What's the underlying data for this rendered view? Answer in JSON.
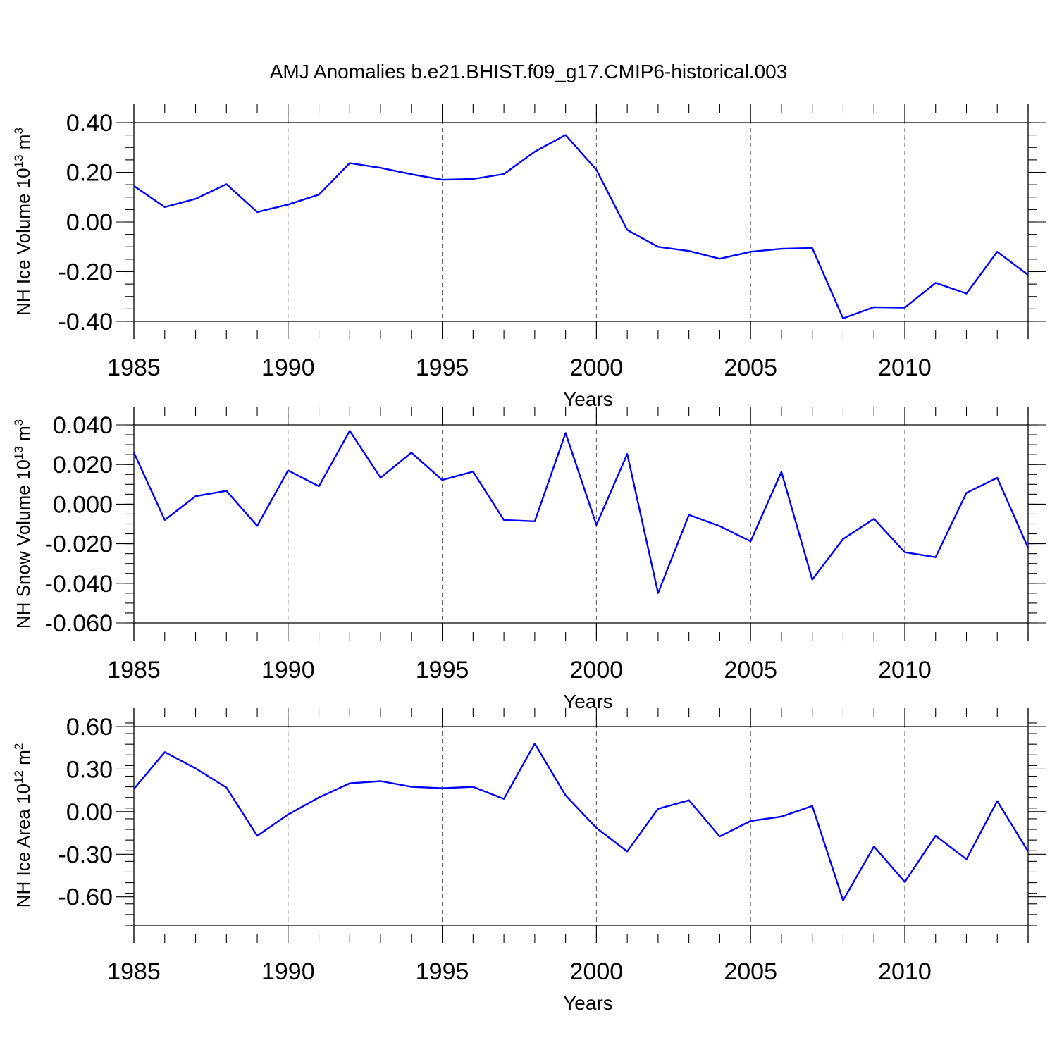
{
  "title": "AMJ Anomalies b.e21.BHIST.f09_g17.CMIP6-historical.003",
  "chart_data": [
    {
      "type": "line",
      "xlabel": "Years",
      "ylabel": "NH Ice Volume 10",
      "ylabel_exponent": "13",
      "ylabel_unit": "m",
      "ylabel_unit_power": "3",
      "xlim": [
        1985,
        2014
      ],
      "ylim": [
        -0.4,
        0.4
      ],
      "xticks": [
        "1985",
        "1990",
        "1995",
        "2000",
        "2005",
        "2010"
      ],
      "yticks": [
        "0.40",
        "0.20",
        "0.00",
        "-0.20",
        "-0.40"
      ],
      "ytick_values": [
        0.4,
        0.2,
        0.0,
        -0.2,
        -0.4
      ],
      "grid": "dashed vertical lines at 1990, 1995, 2000, 2005, 2010",
      "color": "#0000ff",
      "x": [
        1985,
        1986,
        1987,
        1988,
        1989,
        1990,
        1991,
        1992,
        1993,
        1994,
        1995,
        1996,
        1997,
        1998,
        1999,
        2000,
        2001,
        2002,
        2003,
        2004,
        2005,
        2006,
        2007,
        2008,
        2009,
        2010,
        2011,
        2012,
        2013,
        2014
      ],
      "values": [
        0.145,
        0.06,
        0.093,
        0.152,
        0.04,
        0.07,
        0.11,
        0.237,
        0.218,
        0.192,
        0.17,
        0.173,
        0.193,
        0.283,
        0.35,
        0.21,
        -0.032,
        -0.1,
        -0.117,
        -0.148,
        -0.12,
        -0.108,
        -0.105,
        -0.388,
        -0.343,
        -0.345,
        -0.245,
        -0.288,
        -0.12,
        -0.213
      ]
    },
    {
      "type": "line",
      "xlabel": "Years",
      "ylabel": "NH Snow Volume 10",
      "ylabel_exponent": "13",
      "ylabel_unit": "m",
      "ylabel_unit_power": "3",
      "xlim": [
        1985,
        2014
      ],
      "ylim": [
        -0.06,
        0.04
      ],
      "xticks": [
        "1985",
        "1990",
        "1995",
        "2000",
        "2005",
        "2010"
      ],
      "yticks": [
        "0.040",
        "0.020",
        "0.000",
        "-0.020",
        "-0.040",
        "-0.060"
      ],
      "ytick_values": [
        0.04,
        0.02,
        0.0,
        -0.02,
        -0.04,
        -0.06
      ],
      "grid": "dashed vertical lines at 1990, 1995, 2000, 2005, 2010",
      "color": "#0000ff",
      "x": [
        1985,
        1986,
        1987,
        1988,
        1989,
        1990,
        1991,
        1992,
        1993,
        1994,
        1995,
        1996,
        1997,
        1998,
        1999,
        2000,
        2001,
        2002,
        2003,
        2004,
        2005,
        2006,
        2007,
        2008,
        2009,
        2010,
        2011,
        2012,
        2013,
        2014
      ],
      "values": [
        0.026,
        -0.008,
        0.004,
        0.0067,
        -0.011,
        0.017,
        0.009,
        0.037,
        0.0133,
        0.026,
        0.0122,
        0.0164,
        -0.008,
        -0.0087,
        0.0359,
        -0.0105,
        0.0253,
        -0.0449,
        -0.0054,
        -0.0111,
        -0.0188,
        0.0163,
        -0.0381,
        -0.0176,
        -0.0074,
        -0.0243,
        -0.0268,
        0.0057,
        0.0133,
        -0.0221
      ]
    },
    {
      "type": "line",
      "xlabel": "Years",
      "ylabel": "NH Ice Area 10",
      "ylabel_exponent": "12",
      "ylabel_unit": "m",
      "ylabel_unit_power": "2",
      "xlim": [
        1985,
        2014
      ],
      "ylim": [
        -0.8,
        0.6
      ],
      "xticks": [
        "1985",
        "1990",
        "1995",
        "2000",
        "2005",
        "2010"
      ],
      "yticks": [
        "0.60",
        "0.30",
        "0.00",
        "-0.30",
        "-0.60"
      ],
      "ytick_values": [
        0.6,
        0.3,
        0.0,
        -0.3,
        -0.6
      ],
      "grid": "dashed vertical lines at 1990, 1995, 2000, 2005, 2010",
      "color": "#0000ff",
      "x": [
        1985,
        1986,
        1987,
        1988,
        1989,
        1990,
        1991,
        1992,
        1993,
        1994,
        1995,
        1996,
        1997,
        1998,
        1999,
        2000,
        2001,
        2002,
        2003,
        2004,
        2005,
        2006,
        2007,
        2008,
        2009,
        2010,
        2011,
        2012,
        2013,
        2014
      ],
      "values": [
        0.16,
        0.42,
        0.305,
        0.17,
        -0.17,
        -0.02,
        0.1,
        0.2,
        0.215,
        0.175,
        0.165,
        0.175,
        0.09,
        0.48,
        0.115,
        -0.115,
        -0.28,
        0.02,
        0.08,
        -0.175,
        -0.065,
        -0.035,
        0.04,
        -0.625,
        -0.245,
        -0.495,
        -0.17,
        -0.335,
        0.075,
        -0.28
      ]
    }
  ]
}
